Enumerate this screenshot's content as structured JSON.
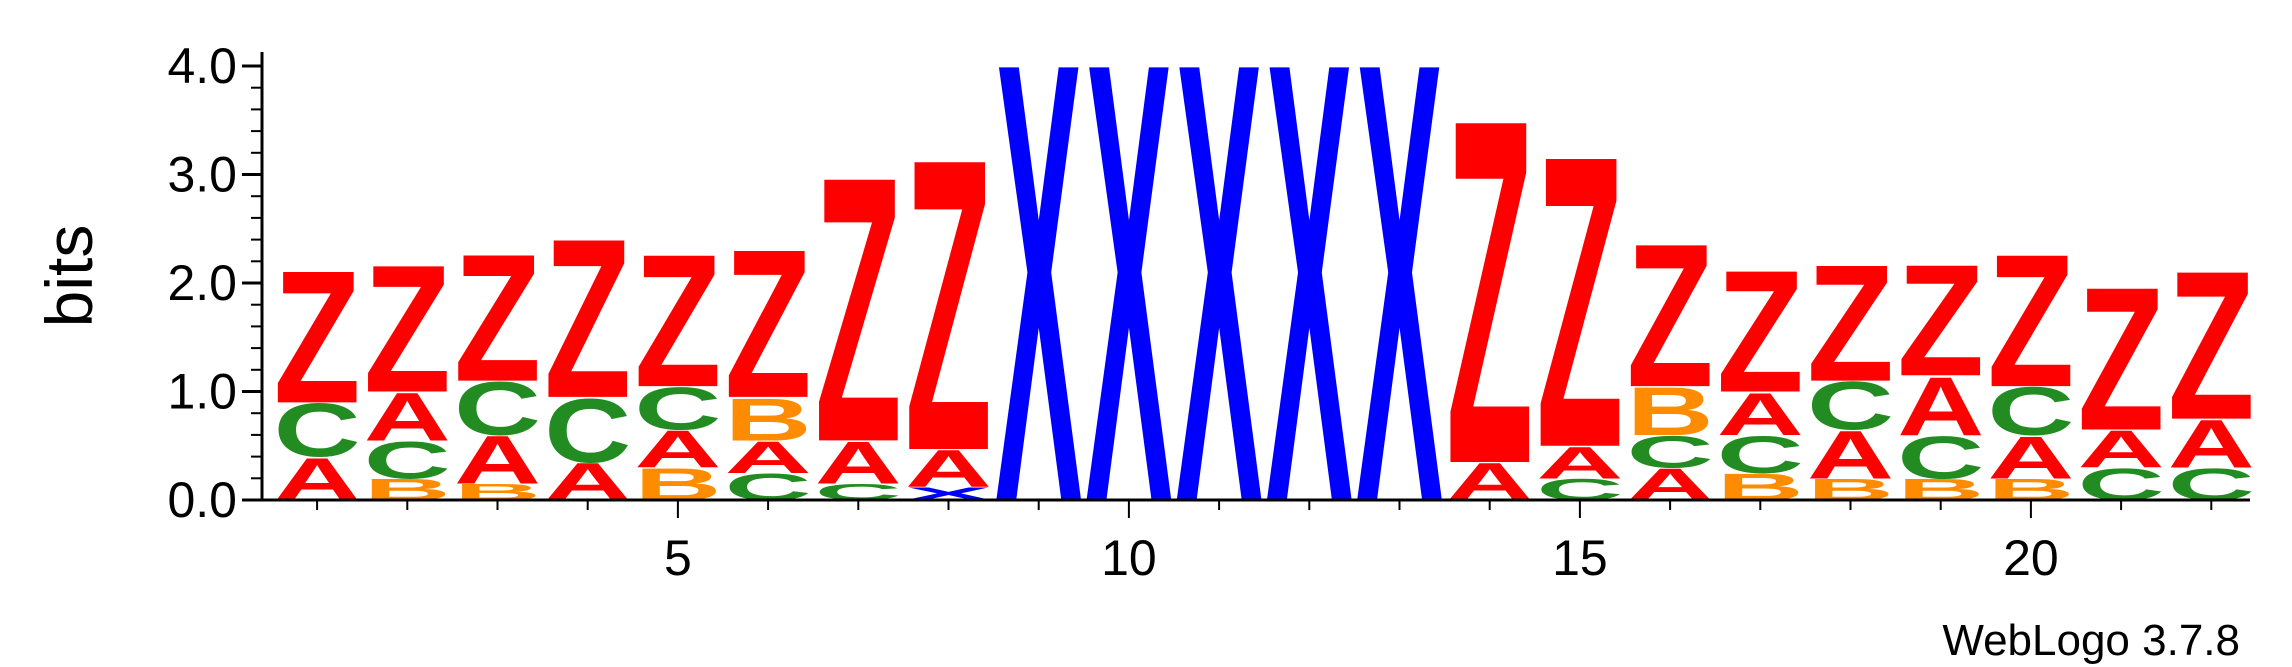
{
  "chart_data": {
    "type": "sequence-logo",
    "ylabel": "bits",
    "ylim": [
      0,
      4.0
    ],
    "yticks": [
      "0.0",
      "1.0",
      "2.0",
      "3.0",
      "4.0"
    ],
    "xticks": [
      {
        "position": 5,
        "label": "5"
      },
      {
        "position": 10,
        "label": "10"
      },
      {
        "position": 15,
        "label": "15"
      },
      {
        "position": 20,
        "label": "20"
      }
    ],
    "footer": "WebLogo 3.7.8",
    "colors": {
      "Z": "#ff0000",
      "A": "#ff0000",
      "X": "#0000ff",
      "C": "#228b22",
      "B": "#ff8c00"
    },
    "positions": [
      {
        "pos": 1,
        "stack": [
          {
            "l": "A",
            "h": 0.4
          },
          {
            "l": "C",
            "h": 0.5
          },
          {
            "l": "Z",
            "h": 1.25
          }
        ]
      },
      {
        "pos": 2,
        "stack": [
          {
            "l": "B",
            "h": 0.2
          },
          {
            "l": "C",
            "h": 0.35
          },
          {
            "l": "A",
            "h": 0.45
          },
          {
            "l": "Z",
            "h": 1.2
          }
        ]
      },
      {
        "pos": 3,
        "stack": [
          {
            "l": "B",
            "h": 0.15
          },
          {
            "l": "A",
            "h": 0.45
          },
          {
            "l": "C",
            "h": 0.5
          },
          {
            "l": "Z",
            "h": 1.2
          }
        ]
      },
      {
        "pos": 4,
        "stack": [
          {
            "l": "A",
            "h": 0.35
          },
          {
            "l": "C",
            "h": 0.6
          },
          {
            "l": "Z",
            "h": 1.5
          }
        ]
      },
      {
        "pos": 5,
        "stack": [
          {
            "l": "B",
            "h": 0.3
          },
          {
            "l": "A",
            "h": 0.35
          },
          {
            "l": "C",
            "h": 0.4
          },
          {
            "l": "Z",
            "h": 1.25
          }
        ]
      },
      {
        "pos": 6,
        "stack": [
          {
            "l": "C",
            "h": 0.25
          },
          {
            "l": "A",
            "h": 0.3
          },
          {
            "l": "B",
            "h": 0.4
          },
          {
            "l": "Z",
            "h": 1.4
          }
        ]
      },
      {
        "pos": 7,
        "stack": [
          {
            "l": "C",
            "h": 0.15
          },
          {
            "l": "A",
            "h": 0.4
          },
          {
            "l": "Z",
            "h": 2.5
          }
        ]
      },
      {
        "pos": 8,
        "stack": [
          {
            "l": "X",
            "h": 0.12
          },
          {
            "l": "A",
            "h": 0.35
          },
          {
            "l": "Z",
            "h": 2.75
          }
        ]
      },
      {
        "pos": 9,
        "stack": [
          {
            "l": "X",
            "h": 4.15
          }
        ]
      },
      {
        "pos": 10,
        "stack": [
          {
            "l": "X",
            "h": 4.15
          }
        ]
      },
      {
        "pos": 11,
        "stack": [
          {
            "l": "X",
            "h": 4.15
          }
        ]
      },
      {
        "pos": 12,
        "stack": [
          {
            "l": "X",
            "h": 4.15
          }
        ]
      },
      {
        "pos": 13,
        "stack": [
          {
            "l": "X",
            "h": 4.15
          }
        ]
      },
      {
        "pos": 14,
        "stack": [
          {
            "l": "A",
            "h": 0.35
          },
          {
            "l": "Z",
            "h": 3.25
          }
        ]
      },
      {
        "pos": 15,
        "stack": [
          {
            "l": "C",
            "h": 0.2
          },
          {
            "l": "A",
            "h": 0.3
          },
          {
            "l": "Z",
            "h": 2.75
          }
        ]
      },
      {
        "pos": 16,
        "stack": [
          {
            "l": "A",
            "h": 0.3
          },
          {
            "l": "C",
            "h": 0.3
          },
          {
            "l": "B",
            "h": 0.45
          },
          {
            "l": "Z",
            "h": 1.35
          }
        ]
      },
      {
        "pos": 17,
        "stack": [
          {
            "l": "B",
            "h": 0.25
          },
          {
            "l": "C",
            "h": 0.35
          },
          {
            "l": "A",
            "h": 0.4
          },
          {
            "l": "Z",
            "h": 1.15
          }
        ]
      },
      {
        "pos": 18,
        "stack": [
          {
            "l": "B",
            "h": 0.2
          },
          {
            "l": "A",
            "h": 0.45
          },
          {
            "l": "C",
            "h": 0.45
          },
          {
            "l": "Z",
            "h": 1.1
          }
        ]
      },
      {
        "pos": 19,
        "stack": [
          {
            "l": "B",
            "h": 0.2
          },
          {
            "l": "C",
            "h": 0.4
          },
          {
            "l": "A",
            "h": 0.55
          },
          {
            "l": "Z",
            "h": 1.05
          }
        ]
      },
      {
        "pos": 20,
        "stack": [
          {
            "l": "B",
            "h": 0.2
          },
          {
            "l": "A",
            "h": 0.4
          },
          {
            "l": "C",
            "h": 0.45
          },
          {
            "l": "Z",
            "h": 1.25
          }
        ]
      },
      {
        "pos": 21,
        "stack": [
          {
            "l": "C",
            "h": 0.3
          },
          {
            "l": "A",
            "h": 0.35
          },
          {
            "l": "Z",
            "h": 1.35
          }
        ]
      },
      {
        "pos": 22,
        "stack": [
          {
            "l": "C",
            "h": 0.3
          },
          {
            "l": "A",
            "h": 0.45
          },
          {
            "l": "Z",
            "h": 1.4
          }
        ]
      }
    ]
  }
}
